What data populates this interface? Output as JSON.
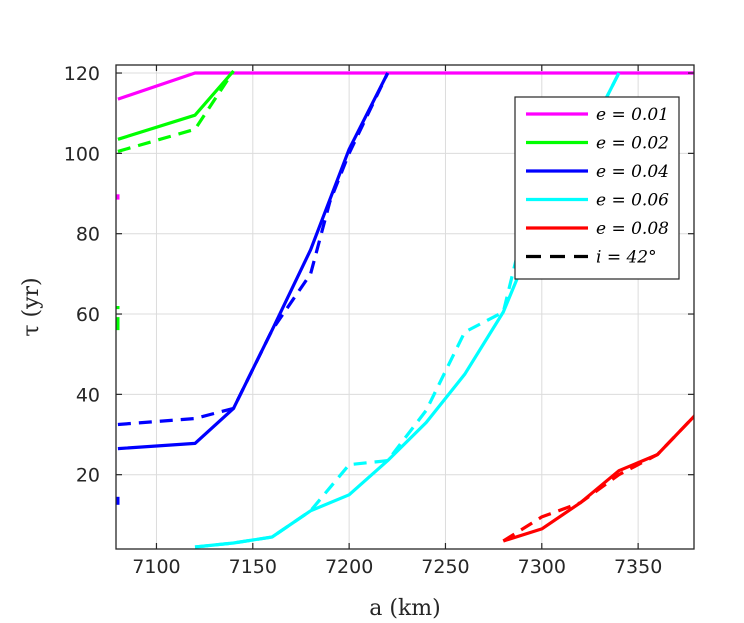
{
  "chart_data": {
    "type": "line",
    "xlabel": "a (km)",
    "ylabel": "τ (yr)",
    "xlim": [
      7079,
      7379
    ],
    "ylim": [
      1.5,
      122
    ],
    "xticks": [
      7100,
      7150,
      7200,
      7250,
      7300,
      7350
    ],
    "yticks": [
      20,
      40,
      60,
      80,
      100,
      120
    ],
    "grid": true,
    "legend_position": "top-right",
    "series": [
      {
        "name": "e = 0.01",
        "color": "#ff00ff",
        "style": "solid",
        "x": [
          7080,
          7120,
          7380
        ],
        "y": [
          113.5,
          120,
          120
        ]
      },
      {
        "name": "e = 0.02",
        "color": "#00ff00",
        "style": "solid",
        "x": [
          7080,
          7120,
          7140
        ],
        "y": [
          103.5,
          109.5,
          120.5
        ]
      },
      {
        "name": "e = 0.04",
        "color": "#0000ff",
        "style": "solid",
        "x": [
          7080,
          7120,
          7140,
          7160,
          7180,
          7200,
          7220
        ],
        "y": [
          26.5,
          27.8,
          36.5,
          56,
          76,
          101,
          120
        ]
      },
      {
        "name": "e = 0.06",
        "color": "#00ffff",
        "style": "solid",
        "x": [
          7120,
          7140,
          7160,
          7180,
          7200,
          7220,
          7240,
          7260,
          7280,
          7290,
          7300,
          7320,
          7340
        ],
        "y": [
          2,
          3,
          4.5,
          11,
          15,
          23.5,
          33,
          45,
          60.5,
          72,
          84,
          101,
          120
        ]
      },
      {
        "name": "e = 0.08",
        "color": "#ff0000",
        "style": "solid",
        "x": [
          7280,
          7300,
          7320,
          7340,
          7360,
          7380
        ],
        "y": [
          3.5,
          6.5,
          13,
          21,
          25,
          35
        ]
      },
      {
        "name": "",
        "color": "#ff00ff",
        "style": "dashed",
        "x": [
          7080,
          7080
        ],
        "y": [
          88.5,
          89.8
        ]
      },
      {
        "name": "",
        "color": "#00ff00",
        "style": "dashed",
        "x": [
          7080,
          7120,
          7140
        ],
        "y": [
          100.5,
          106,
          120.5
        ]
      },
      {
        "name": "",
        "color": "#00ff00",
        "style": "dashed",
        "x": [
          7080,
          7080
        ],
        "y": [
          56,
          62
        ]
      },
      {
        "name": "",
        "color": "#0000ff",
        "style": "dashed",
        "x": [
          7080,
          7120,
          7140,
          7160,
          7180,
          7190,
          7200,
          7220
        ],
        "y": [
          32.5,
          34,
          36.5,
          56,
          70,
          88,
          100,
          120
        ]
      },
      {
        "name": "",
        "color": "#0000ff",
        "style": "dashed",
        "x": [
          7080,
          7080
        ],
        "y": [
          12.5,
          14.5
        ]
      },
      {
        "name": "",
        "color": "#00ffff",
        "style": "dashed",
        "x": [
          7120,
          7140,
          7160,
          7180,
          7200,
          7220,
          7240,
          7260,
          7280,
          7290,
          7300,
          7320,
          7340
        ],
        "y": [
          2,
          3,
          4.5,
          11,
          22.5,
          23.5,
          36,
          55.5,
          60.5,
          80,
          90,
          101,
          120
        ]
      },
      {
        "name": "",
        "color": "#ff0000",
        "style": "dashed",
        "x": [
          7280,
          7300,
          7320,
          7340,
          7360,
          7380
        ],
        "y": [
          3.5,
          9.5,
          13,
          20,
          25,
          35
        ]
      },
      {
        "name": "i = 42°",
        "color": "#000000",
        "style": "dashed",
        "x": [],
        "y": []
      }
    ]
  },
  "legend": [
    {
      "label": "e = 0.01",
      "color": "#ff00ff",
      "style": "solid"
    },
    {
      "label": "e = 0.02",
      "color": "#00ff00",
      "style": "solid"
    },
    {
      "label": "e = 0.04",
      "color": "#0000ff",
      "style": "solid"
    },
    {
      "label": "e = 0.06",
      "color": "#00ffff",
      "style": "solid"
    },
    {
      "label": "e = 0.08",
      "color": "#ff0000",
      "style": "solid"
    },
    {
      "label": "i = 42°",
      "color": "#000000",
      "style": "dashed"
    }
  ]
}
